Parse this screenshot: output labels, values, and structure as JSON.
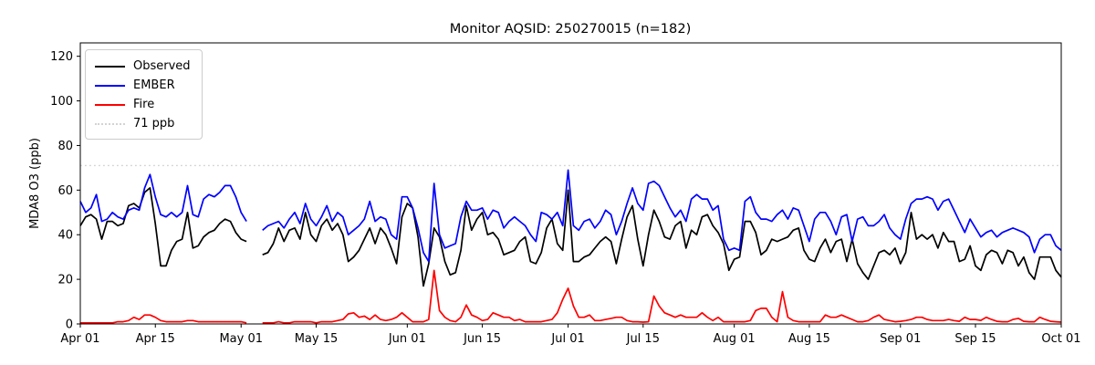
{
  "figure": {
    "title": "Monitor AQSID: 250270015 (n=182)",
    "background": "#ffffff"
  },
  "chart_data": {
    "type": "line",
    "title": "Monitor AQSID: 250270015 (n=182)",
    "xlabel": "",
    "ylabel": "MDA8 O3 (ppb)",
    "ylim": [
      0,
      126
    ],
    "y_ticks": [
      0,
      20,
      40,
      60,
      80,
      100,
      120
    ],
    "x_tick_labels": [
      "Apr 01",
      "Apr 15",
      "May 01",
      "May 15",
      "Jun 01",
      "Jun 15",
      "Jul 01",
      "Jul 15",
      "Aug 01",
      "Aug 15",
      "Sep 01",
      "Sep 15",
      "Oct 01"
    ],
    "x_tick_day_index": [
      0,
      14,
      30,
      44,
      61,
      75,
      91,
      105,
      122,
      136,
      153,
      167,
      183
    ],
    "x_start_date": "Apr 01",
    "x_end_date": "Oct 01",
    "n_points_label": 182,
    "grid": false,
    "legend_position": "upper left",
    "legend_entries": [
      "Observed",
      "EMBER",
      "Fire",
      "71 ppb"
    ],
    "threshold": {
      "label": "71 ppb",
      "value": 71,
      "color": "#d3d3d3",
      "line_style": "dotted"
    },
    "missing_days": [
      "May 03",
      "May 04"
    ],
    "series": [
      {
        "name": "Observed",
        "color": "#000000",
        "values": [
          44,
          48,
          49,
          47,
          38,
          46,
          46,
          44,
          45,
          53,
          54,
          52,
          59,
          61,
          45,
          26,
          26,
          33,
          37,
          38,
          50,
          34,
          35,
          39,
          41,
          42,
          45,
          47,
          46,
          41,
          38,
          37,
          null,
          null,
          31,
          32,
          36,
          43,
          37,
          42,
          43,
          38,
          50,
          40,
          37,
          44,
          47,
          42,
          45,
          40,
          28,
          30,
          33,
          38,
          43,
          36,
          43,
          40,
          34,
          27,
          48,
          54,
          52,
          39,
          17,
          27,
          43,
          39,
          28,
          22,
          23,
          33,
          53,
          42,
          47,
          50,
          40,
          41,
          38,
          31,
          32,
          33,
          37,
          39,
          28,
          27,
          32,
          43,
          47,
          36,
          33,
          60,
          28,
          28,
          30,
          31,
          34,
          37,
          39,
          37,
          27,
          38,
          48,
          53,
          38,
          26,
          40,
          51,
          46,
          39,
          38,
          44,
          46,
          34,
          42,
          40,
          48,
          49,
          44,
          41,
          36,
          24,
          29,
          30,
          46,
          46,
          41,
          31,
          33,
          38,
          37,
          38,
          39,
          42,
          43,
          33,
          29,
          28,
          34,
          38,
          32,
          37,
          38,
          28,
          38,
          27,
          23,
          20,
          26,
          32,
          33,
          31,
          34,
          27,
          32,
          50,
          38,
          40,
          38,
          40,
          34,
          41,
          37,
          37,
          28,
          29,
          35,
          26,
          24,
          31,
          33,
          32,
          27,
          33,
          32,
          26,
          30,
          23,
          20,
          30,
          30,
          30,
          24,
          21
        ]
      },
      {
        "name": "EMBER",
        "color": "#0000ff",
        "values": [
          55,
          50,
          52,
          58,
          46,
          47,
          50,
          48,
          47,
          51,
          52,
          51,
          61,
          67,
          57,
          49,
          48,
          50,
          48,
          50,
          62,
          49,
          48,
          56,
          58,
          57,
          59,
          62,
          62,
          57,
          50,
          46,
          null,
          null,
          42,
          44,
          45,
          46,
          43,
          47,
          50,
          45,
          54,
          47,
          44,
          48,
          53,
          46,
          50,
          48,
          40,
          42,
          44,
          47,
          55,
          46,
          48,
          47,
          40,
          38,
          57,
          57,
          52,
          43,
          32,
          28,
          63,
          40,
          34,
          35,
          36,
          48,
          55,
          51,
          51,
          52,
          47,
          51,
          50,
          43,
          46,
          48,
          46,
          44,
          40,
          37,
          50,
          49,
          47,
          50,
          44,
          69,
          44,
          42,
          46,
          47,
          43,
          46,
          51,
          49,
          40,
          46,
          54,
          61,
          54,
          51,
          63,
          64,
          62,
          57,
          52,
          48,
          51,
          46,
          56,
          58,
          56,
          56,
          51,
          53,
          38,
          33,
          34,
          33,
          55,
          57,
          50,
          47,
          47,
          46,
          49,
          51,
          47,
          52,
          51,
          44,
          37,
          47,
          50,
          50,
          46,
          40,
          48,
          49,
          37,
          47,
          48,
          44,
          44,
          46,
          49,
          43,
          40,
          38,
          47,
          54,
          56,
          56,
          57,
          56,
          51,
          55,
          56,
          51,
          46,
          41,
          47,
          43,
          39,
          41,
          42,
          39,
          41,
          42,
          43,
          42,
          41,
          39,
          32,
          38,
          40,
          40,
          35,
          33
        ]
      },
      {
        "name": "Fire",
        "color": "#ff0000",
        "values": [
          0.5,
          0.5,
          0.5,
          0.5,
          0.5,
          0.5,
          0.5,
          1,
          1,
          1.5,
          3,
          2,
          4,
          4,
          3,
          1.5,
          1,
          1,
          1,
          1,
          1.5,
          1.5,
          1,
          1,
          1,
          1,
          1,
          1,
          1,
          1,
          1,
          0.5,
          null,
          null,
          0.5,
          0.5,
          0.5,
          1,
          0.5,
          0.5,
          1,
          1,
          1,
          1,
          0.5,
          1,
          1,
          1,
          1.5,
          2,
          4.5,
          5,
          3,
          3.5,
          2,
          4,
          2,
          1.5,
          2,
          3,
          5,
          3,
          1,
          1,
          1,
          2,
          24,
          6,
          3,
          1.5,
          1,
          3,
          8.5,
          4,
          3,
          1.5,
          2,
          5,
          4,
          3,
          3,
          1.5,
          2,
          1,
          1,
          1,
          1,
          1.5,
          2,
          5,
          11,
          16,
          8,
          3,
          3,
          4,
          1.5,
          1.5,
          2,
          2.5,
          3,
          3,
          1.5,
          1,
          1,
          0.8,
          1,
          12.5,
          8,
          5,
          4,
          3,
          4,
          3,
          3,
          3,
          5,
          3,
          1.5,
          3,
          1,
          1,
          1,
          1,
          1,
          1.5,
          6,
          7,
          7,
          3,
          1,
          14.5,
          3,
          1.5,
          1,
          1,
          1,
          1,
          1,
          4,
          3,
          3,
          4,
          3,
          2,
          1,
          1,
          1.5,
          3,
          4,
          2,
          1.5,
          1,
          1.2,
          1.5,
          2,
          3,
          3,
          2,
          1.5,
          1.5,
          1.5,
          2,
          1.5,
          1.2,
          3,
          2,
          2,
          1.6,
          3,
          2,
          1.2,
          1,
          1,
          2,
          2.5,
          1.2,
          1,
          1,
          3,
          2,
          1.2,
          1,
          0.8
        ]
      }
    ]
  }
}
